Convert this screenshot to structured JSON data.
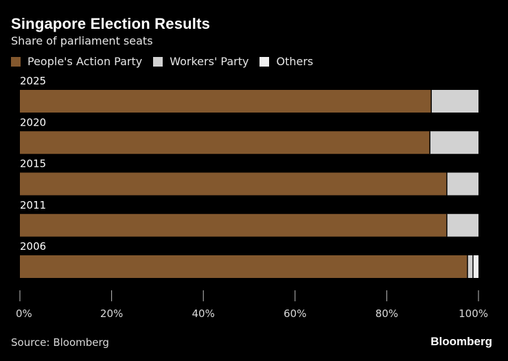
{
  "title": "Singapore Election Results",
  "subtitle": "Share of parliament seats",
  "source": "Source: Bloomberg",
  "brand": "Bloomberg",
  "colors": {
    "pap": "#83582e",
    "wp": "#d2d2d2",
    "others": "#f0f0f0",
    "axis": "#bfbfbf",
    "background": "#000000"
  },
  "legend": [
    {
      "name": "People's Action Party",
      "color": "#83582e"
    },
    {
      "name": "Workers' Party",
      "color": "#d2d2d2"
    },
    {
      "name": "Others",
      "color": "#f0f0f0"
    }
  ],
  "chart_data": {
    "type": "bar",
    "orientation": "horizontal",
    "stacked": true,
    "title": "Singapore Election Results",
    "subtitle": "Share of parliament seats",
    "categories": [
      "2025",
      "2020",
      "2015",
      "2011",
      "2006"
    ],
    "series": [
      {
        "name": "People's Action Party",
        "color": "#83582e",
        "values": [
          89.7,
          89.4,
          93.1,
          93.1,
          97.6
        ]
      },
      {
        "name": "Workers' Party",
        "color": "#d2d2d2",
        "values": [
          10.3,
          10.6,
          6.9,
          6.9,
          1.2
        ]
      },
      {
        "name": "Others",
        "color": "#f0f0f0",
        "values": [
          0,
          0,
          0,
          0,
          1.2
        ]
      }
    ],
    "x_ticks": [
      "0%",
      "20%",
      "40%",
      "60%",
      "80%",
      "100%"
    ],
    "xlim": [
      0,
      100
    ],
    "grid": false,
    "legend_position": "top-left"
  }
}
